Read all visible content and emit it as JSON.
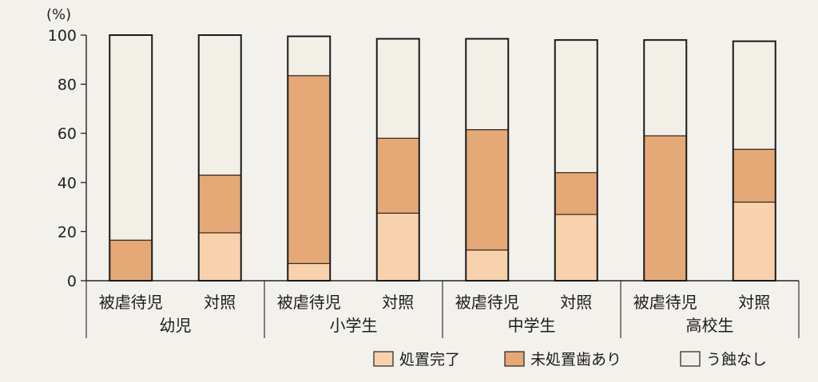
{
  "chart_data": {
    "type": "bar",
    "stacked": true,
    "unit": "(%)",
    "ylim": [
      0,
      100
    ],
    "yticks": [
      0,
      20,
      40,
      60,
      80,
      100
    ],
    "groups": [
      {
        "label": "幼児",
        "bars": [
          "被虐待児",
          "対照"
        ]
      },
      {
        "label": "小学生",
        "bars": [
          "被虐待児",
          "対照"
        ]
      },
      {
        "label": "中学生",
        "bars": [
          "被虐待児",
          "対照"
        ]
      },
      {
        "label": "高校生",
        "bars": [
          "被虐待児",
          "対照"
        ]
      }
    ],
    "categories": [
      "被虐待児",
      "対照",
      "被虐待児",
      "対照",
      "被虐待児",
      "対照",
      "被虐待児",
      "対照"
    ],
    "series": [
      {
        "name": "処置完了",
        "color": "#f7d2ad",
        "values": [
          0,
          19.5,
          7,
          27.5,
          12.5,
          27,
          0,
          32
        ]
      },
      {
        "name": "未処置歯あり",
        "color": "#e5a877",
        "values": [
          16.5,
          23.5,
          76.5,
          30.5,
          49,
          17,
          59,
          21.5
        ]
      },
      {
        "name": "う蝕なし",
        "color": "#f1efe6",
        "values": [
          83.5,
          57,
          16,
          40.5,
          37,
          54,
          39,
          44
        ]
      }
    ],
    "legend_position": "bottom-right",
    "grid": false
  }
}
